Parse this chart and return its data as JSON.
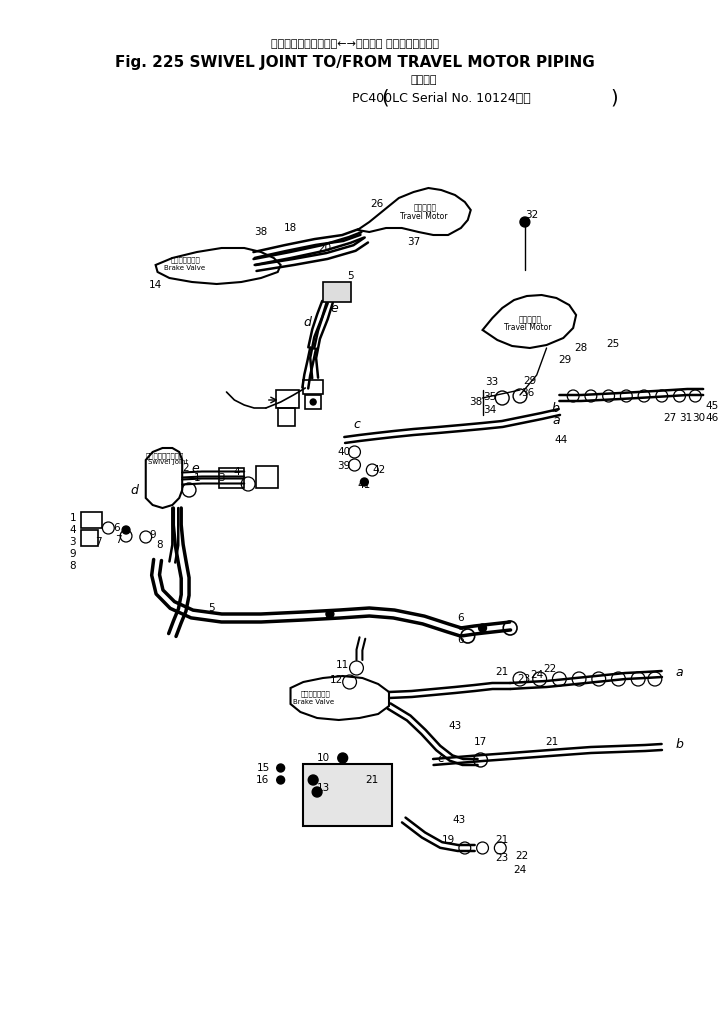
{
  "bg_color": "#ffffff",
  "fig_width": 7.19,
  "fig_height": 10.18,
  "dpi": 100,
  "title_jp": "スイベルジョイント　←→　走　行 モータパイピング",
  "title_en": "Fig. 225 SWIVEL JOINT TO/FROM TRAVEL MOTOR PIPING",
  "subtitle_jp": "適用号機",
  "subtitle_en": "PC400LC Serial No. 10124～）",
  "subtitle_en_prefix": "("
}
